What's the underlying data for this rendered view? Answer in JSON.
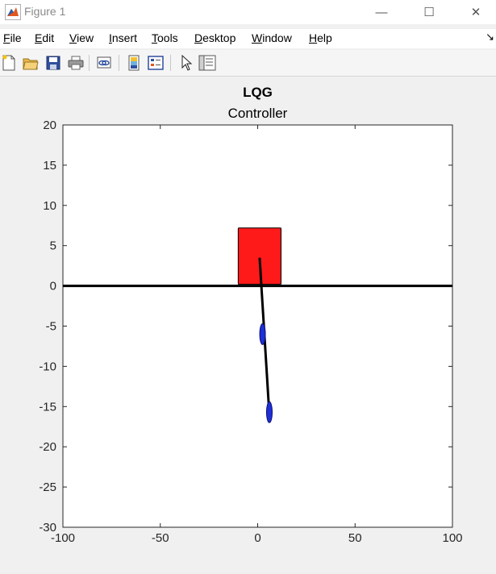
{
  "window": {
    "title": "Figure 1",
    "minimize_glyph": "—",
    "maximize_glyph": "☐",
    "close_glyph": "✕"
  },
  "menu": {
    "items": [
      {
        "accel": "F",
        "rest": "ile"
      },
      {
        "accel": "E",
        "rest": "dit"
      },
      {
        "accel": "V",
        "rest": "iew"
      },
      {
        "accel": "I",
        "rest": "nsert"
      },
      {
        "accel": "T",
        "rest": "ools"
      },
      {
        "accel": "D",
        "rest": "esktop"
      },
      {
        "accel": "W",
        "rest": "indow"
      },
      {
        "accel": "H",
        "rest": "elp"
      }
    ],
    "overflow_glyph": "↘"
  },
  "toolbar": {
    "icons": [
      "new-figure-icon",
      "open-file-icon",
      "save-icon",
      "print-icon",
      "link-plot-icon",
      "colorbar-icon",
      "legend-icon",
      "edit-plot-arrow-icon",
      "property-inspector-icon"
    ]
  },
  "chart_data": {
    "type": "scatter",
    "title": "LQG",
    "subtitle": "Controller",
    "xlabel": "",
    "ylabel": "",
    "xlim": [
      -100,
      100
    ],
    "ylim": [
      -30,
      20
    ],
    "xticks": [
      -100,
      -50,
      0,
      50,
      100
    ],
    "yticks": [
      20,
      15,
      10,
      5,
      0,
      -5,
      -10,
      -15,
      -20,
      -25,
      -30
    ],
    "grid": false,
    "ground_line": {
      "y": 0,
      "x": [
        -100,
        100
      ],
      "color": "#000000"
    },
    "cart": {
      "x": [
        -10,
        12
      ],
      "y": [
        0.2,
        7.2
      ],
      "color": "#ff1a1a"
    },
    "pendulum_rod": {
      "x": [
        1,
        6
      ],
      "y": [
        3.5,
        -16
      ],
      "color": "#000000"
    },
    "masses": [
      {
        "x": 2.5,
        "y": -6,
        "color": "#1f2fd6"
      },
      {
        "x": 6,
        "y": -15.7,
        "color": "#1f2fd6"
      }
    ]
  }
}
